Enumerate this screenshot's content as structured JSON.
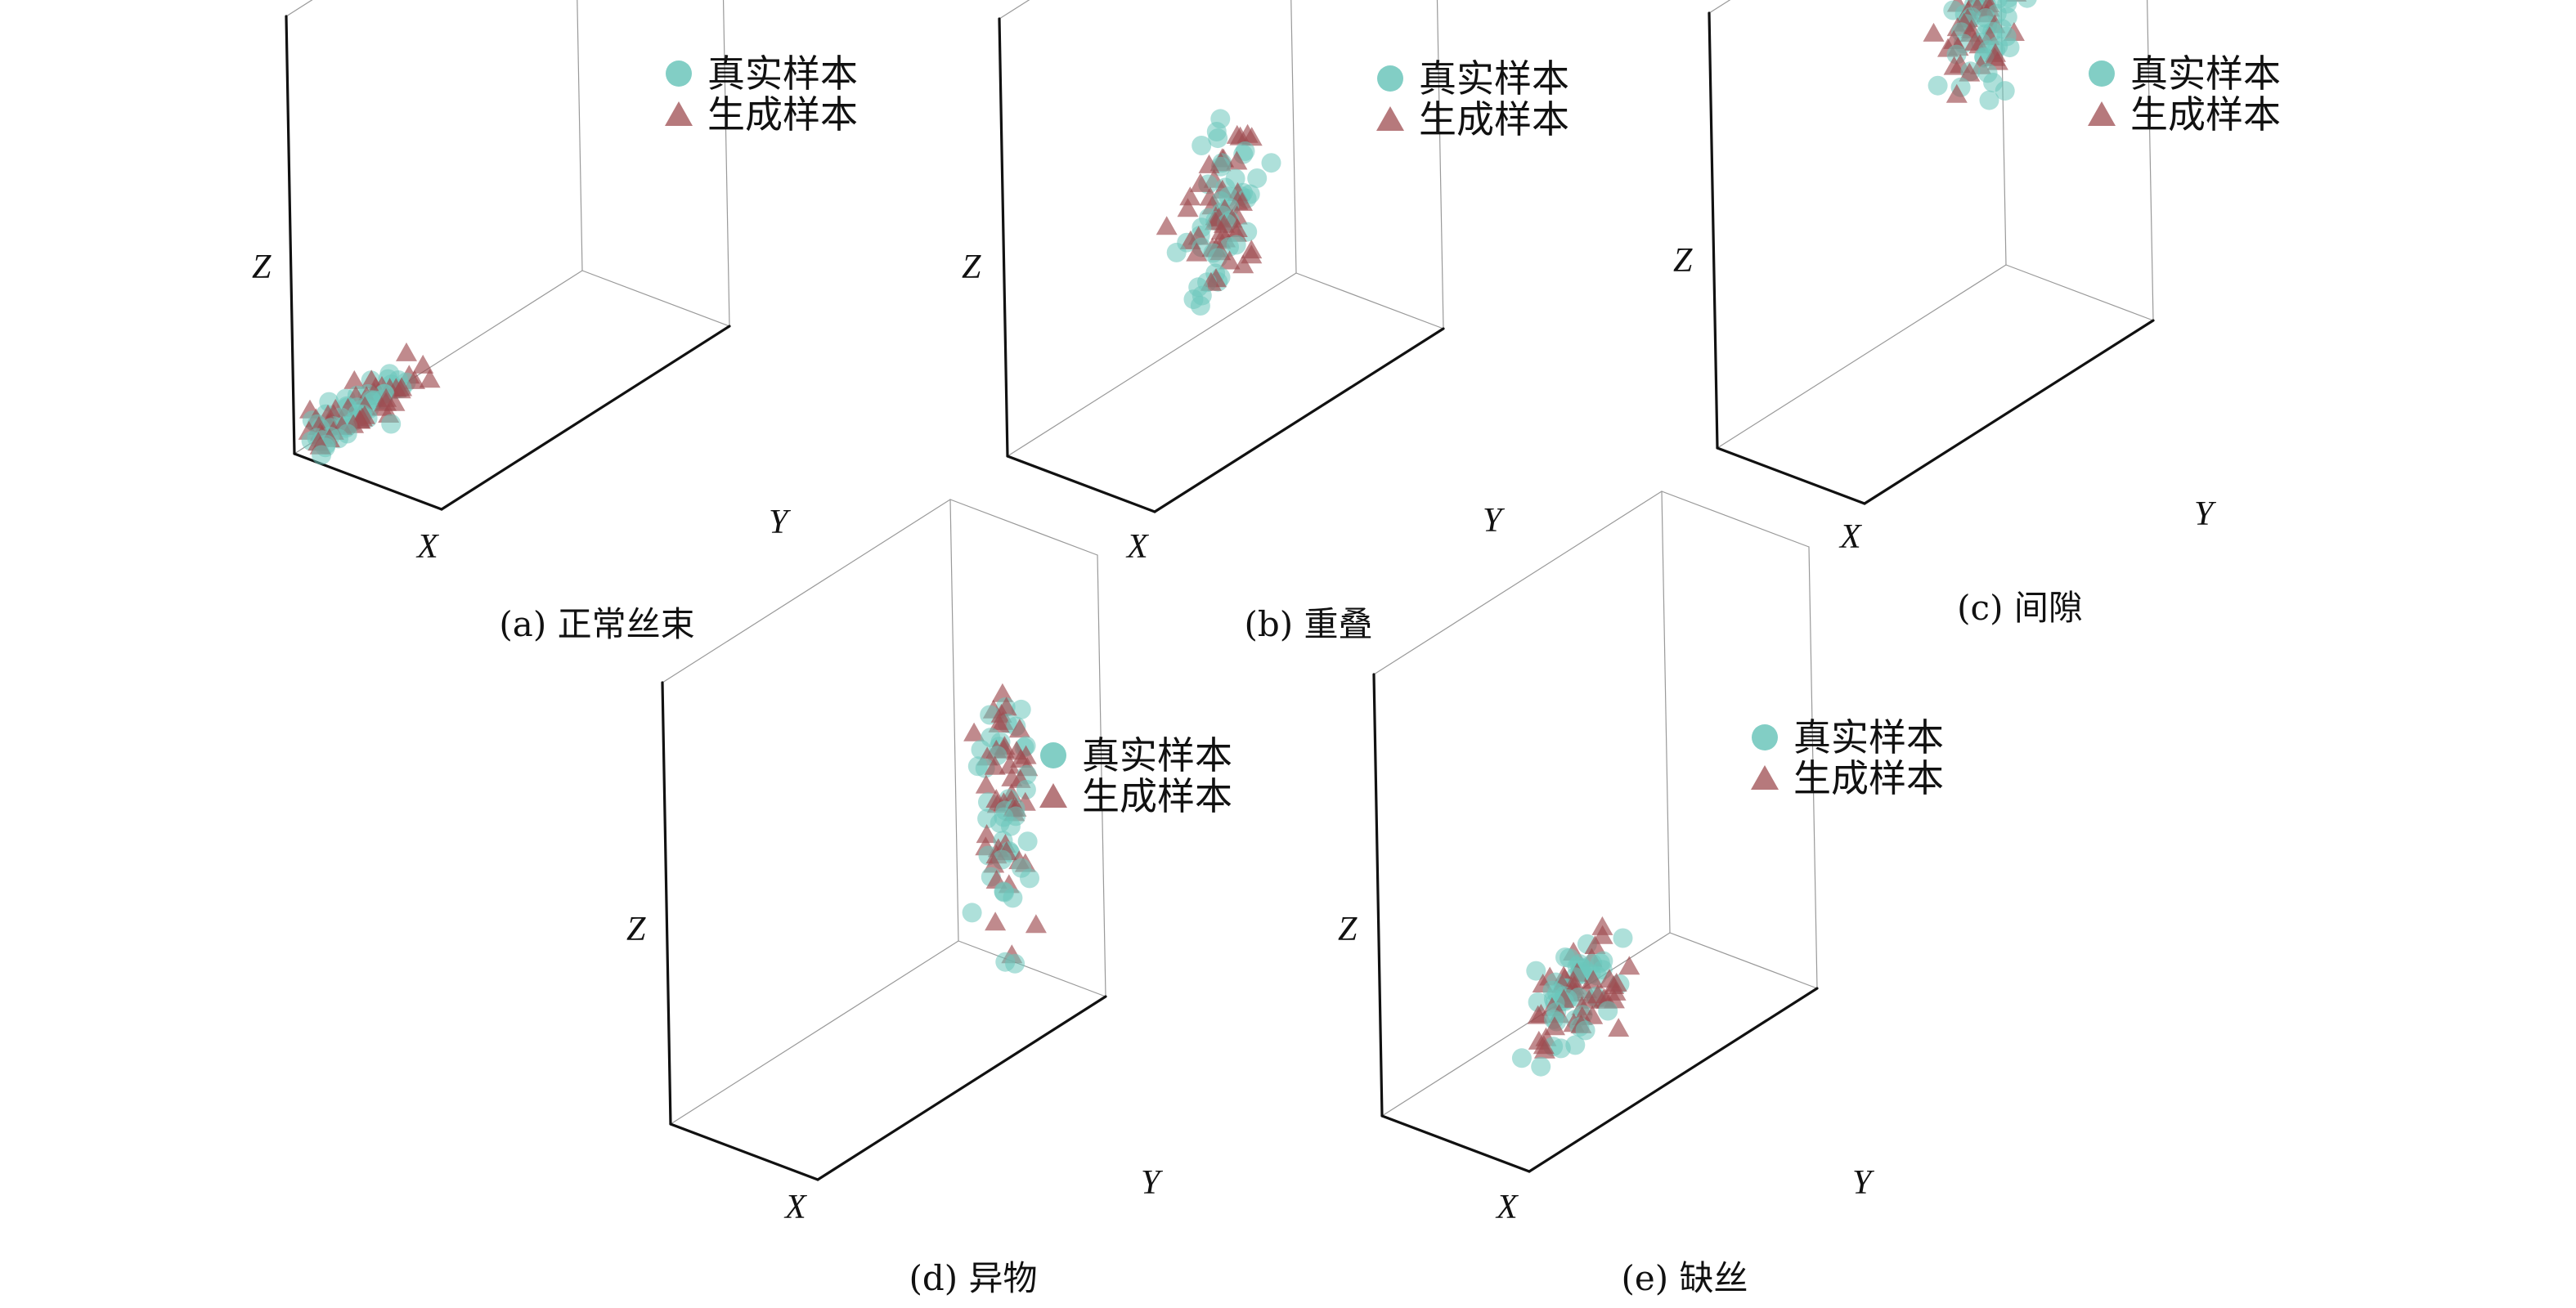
{
  "colors": {
    "real": "#6cc6bb",
    "generated": "#9e4c50",
    "axis_bold": "#111111",
    "axis_thin": "#999999"
  },
  "legend": {
    "real_label": "真实样本",
    "generated_label": "生成样本"
  },
  "axes": {
    "x_label": "X",
    "y_label": "Y",
    "z_label": "Z"
  },
  "panels": [
    {
      "caption": "(a) 正常丝束"
    },
    {
      "caption": "(b) 重叠"
    },
    {
      "caption": "(c) 间隙"
    },
    {
      "caption": "(d) 异物"
    },
    {
      "caption": "(e) 缺丝"
    }
  ],
  "chart_data": [
    {
      "type": "scatter",
      "projection": "3d",
      "caption": "(a) 正常丝束",
      "xlabel": "X",
      "ylabel": "Y",
      "zlabel": "Z",
      "grid": false,
      "legend_position": "top-right",
      "series": [
        {
          "name": "真实样本",
          "marker": "circle",
          "color": "#6cc6bb",
          "center": [
            0.15,
            0.85,
            0.06
          ],
          "spread": [
            0.1,
            0.16,
            0.04
          ],
          "count": 48
        },
        {
          "name": "生成样本",
          "marker": "triangle",
          "color": "#9e4c50",
          "center": [
            0.15,
            0.85,
            0.06
          ],
          "spread": [
            0.1,
            0.16,
            0.04
          ],
          "count": 44
        }
      ]
    },
    {
      "type": "scatter",
      "projection": "3d",
      "caption": "(b) 重叠",
      "xlabel": "X",
      "ylabel": "Y",
      "zlabel": "Z",
      "grid": false,
      "legend_position": "top-right",
      "series": [
        {
          "name": "真实样本",
          "marker": "circle",
          "color": "#6cc6bb",
          "center": [
            0.5,
            0.5,
            0.4
          ],
          "spread": [
            0.1,
            0.1,
            0.16
          ],
          "count": 44
        },
        {
          "name": "生成样本",
          "marker": "triangle",
          "color": "#9e4c50",
          "center": [
            0.5,
            0.5,
            0.4
          ],
          "spread": [
            0.1,
            0.1,
            0.16
          ],
          "count": 44
        }
      ]
    },
    {
      "type": "scatter",
      "projection": "3d",
      "caption": "(c) 间隙",
      "xlabel": "X",
      "ylabel": "Y",
      "zlabel": "Z",
      "grid": false,
      "legend_position": "top-right",
      "series": [
        {
          "name": "真实样本",
          "marker": "circle",
          "color": "#6cc6bb",
          "center": [
            0.15,
            0.15,
            0.62
          ],
          "spread": [
            0.1,
            0.1,
            0.14
          ],
          "count": 46
        },
        {
          "name": "生成样本",
          "marker": "triangle",
          "color": "#9e4c50",
          "center": [
            0.15,
            0.15,
            0.62
          ],
          "spread": [
            0.1,
            0.1,
            0.14
          ],
          "count": 46
        }
      ]
    },
    {
      "type": "scatter",
      "projection": "3d",
      "caption": "(d) 异物",
      "xlabel": "X",
      "ylabel": "Y",
      "zlabel": "Z",
      "grid": false,
      "legend_position": "top-right",
      "series": [
        {
          "name": "真实样本",
          "marker": "circle",
          "color": "#6cc6bb",
          "center": [
            0.55,
            0.1,
            0.42
          ],
          "spread": [
            0.07,
            0.07,
            0.24
          ],
          "count": 40
        },
        {
          "name": "生成样本",
          "marker": "triangle",
          "color": "#9e4c50",
          "center": [
            0.55,
            0.1,
            0.42
          ],
          "spread": [
            0.07,
            0.07,
            0.24
          ],
          "count": 44
        }
      ]
    },
    {
      "type": "scatter",
      "projection": "3d",
      "caption": "(e) 缺丝",
      "xlabel": "X",
      "ylabel": "Y",
      "zlabel": "Z",
      "grid": false,
      "legend_position": "top-right",
      "series": [
        {
          "name": "真实样本",
          "marker": "circle",
          "color": "#6cc6bb",
          "center": [
            0.55,
            0.6,
            0.18
          ],
          "spread": [
            0.15,
            0.13,
            0.1
          ],
          "count": 48
        },
        {
          "name": "生成样本",
          "marker": "triangle",
          "color": "#9e4c50",
          "center": [
            0.55,
            0.6,
            0.18
          ],
          "spread": [
            0.15,
            0.13,
            0.1
          ],
          "count": 44
        }
      ]
    }
  ]
}
